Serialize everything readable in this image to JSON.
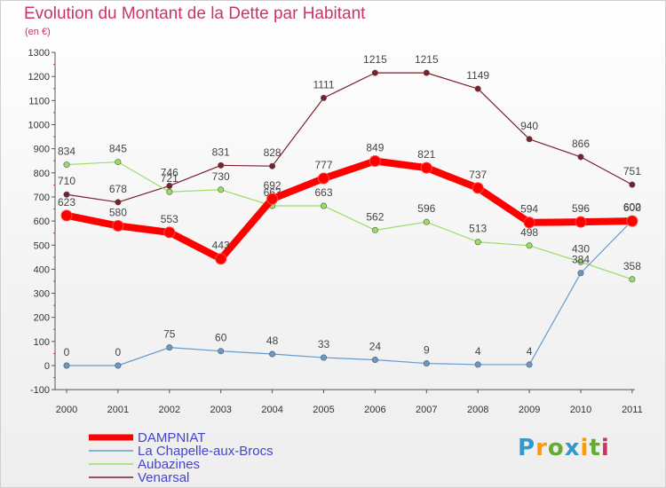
{
  "title": "Evolution du Montant de la Dette par Habitant",
  "subtitle": "(en €)",
  "logo": {
    "text": "Proxiti",
    "colors": [
      "#3399cc",
      "#ff9900",
      "#66aa33",
      "#3399cc",
      "#ff9900",
      "#66aa33",
      "#cc3366"
    ]
  },
  "chart_data": {
    "type": "line",
    "x": [
      "2000",
      "2001",
      "2002",
      "2003",
      "2004",
      "2005",
      "2006",
      "2007",
      "2008",
      "2009",
      "2010",
      "2011"
    ],
    "yticks": [
      "1300",
      "1200",
      "1100",
      "1000",
      "900",
      "800",
      "700",
      "600",
      "500",
      "400",
      "300",
      "200",
      "100",
      "0",
      "-100"
    ],
    "ylim": [
      -100,
      1300
    ],
    "grid": false,
    "legend_position": "bottom-left",
    "series": [
      {
        "name": "Venarsal",
        "color": "#7a1f2b",
        "width": 1.2,
        "values": [
          710,
          678,
          746,
          831,
          828,
          1111,
          1215,
          1215,
          1149,
          940,
          866,
          751
        ],
        "labels": [
          "710",
          "678",
          "746",
          "831",
          "828",
          "1111",
          "1215",
          "1215",
          "1149",
          "940",
          "866",
          "751"
        ]
      },
      {
        "name": "Aubazines",
        "color": "#99dd66",
        "width": 1.2,
        "values": [
          834,
          845,
          721,
          730,
          663,
          663,
          562,
          596,
          513,
          498,
          430,
          358
        ],
        "labels": [
          "834",
          "845",
          "721",
          "730",
          "663",
          "663",
          "562",
          "596",
          "513",
          "498",
          "430",
          "358"
        ]
      },
      {
        "name": "La Chapelle-aux-Brocs",
        "color": "#6699cc",
        "width": 1.2,
        "values": [
          0,
          0,
          75,
          60,
          48,
          33,
          24,
          9,
          4,
          4,
          384,
          602
        ],
        "labels": [
          "0",
          "0",
          "75",
          "60",
          "48",
          "33",
          "24",
          "9",
          "4",
          "4",
          "384",
          "602"
        ]
      },
      {
        "name": "DAMPNIAT",
        "color": "#ff0000",
        "width": 8,
        "values": [
          623,
          580,
          553,
          443,
          692,
          777,
          849,
          821,
          737,
          594,
          596,
          600
        ],
        "labels": [
          "623",
          "580",
          "553",
          "443",
          "692",
          "777",
          "849",
          "821",
          "737",
          "594",
          "596",
          "600"
        ]
      }
    ]
  }
}
